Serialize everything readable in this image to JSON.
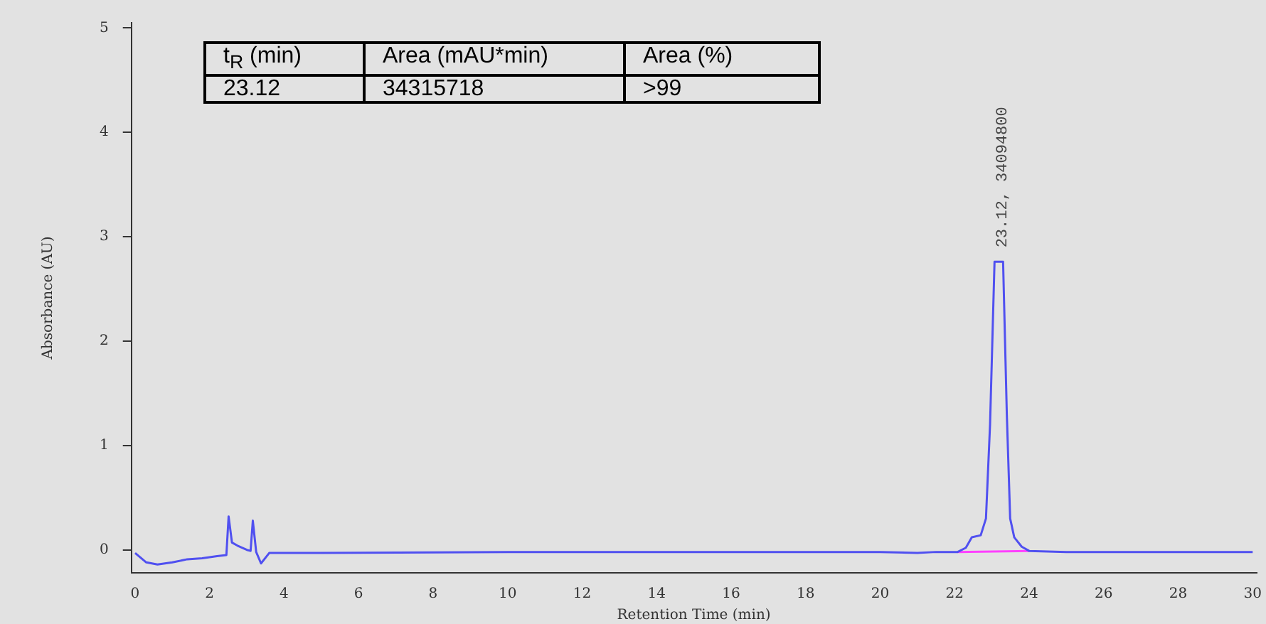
{
  "chart_data": {
    "type": "line",
    "xlabel": "Retention Time (min)",
    "ylabel": "Absorbance (AU)",
    "xlim": [
      -0.1,
      30.1
    ],
    "ylim": [
      -0.22,
      5.05
    ],
    "xticks": [
      0,
      2,
      4,
      6,
      8,
      10,
      12,
      14,
      16,
      18,
      20,
      22,
      24,
      26,
      28,
      30
    ],
    "yticks": [
      0,
      1,
      2,
      3,
      4,
      5
    ],
    "grid": false,
    "legend": false,
    "marker": "none",
    "line_style": "solid",
    "series": [
      {
        "color": "#5050f0",
        "x": [
          0,
          0.3,
          0.6,
          1.0,
          1.4,
          1.8,
          2.2,
          2.45,
          2.51,
          2.6,
          2.75,
          3.0,
          3.1,
          3.16,
          3.25,
          3.38,
          3.6,
          5,
          10,
          15,
          20,
          21,
          21.5,
          22.08,
          22.3,
          22.46,
          22.7,
          22.84,
          22.95,
          23.07,
          23.3,
          23.4,
          23.49,
          23.6,
          23.8,
          24.0,
          25,
          30
        ],
        "values": [
          -0.03,
          -0.12,
          -0.14,
          -0.12,
          -0.09,
          -0.08,
          -0.06,
          -0.05,
          0.32,
          0.07,
          0.04,
          0.0,
          -0.01,
          0.28,
          -0.02,
          -0.13,
          -0.03,
          -0.03,
          -0.02,
          -0.02,
          -0.02,
          -0.03,
          -0.02,
          -0.02,
          0.02,
          0.12,
          0.14,
          0.3,
          1.2,
          2.76,
          2.76,
          1.3,
          0.3,
          0.12,
          0.03,
          -0.01,
          -0.02,
          -0.02
        ]
      },
      {
        "color": "#ff40ff",
        "x": [
          22.08,
          24.0
        ],
        "values": [
          -0.02,
          -0.01
        ]
      }
    ],
    "annotations": [
      "t$_{R}$ (min)",
      "Area (mAU*min)",
      "Area (%)",
      "23.12",
      "34315718",
      ">99",
      {
        "text": "23.12, 34094800",
        "x": 23.12,
        "y": 2.76
      }
    ]
  }
}
